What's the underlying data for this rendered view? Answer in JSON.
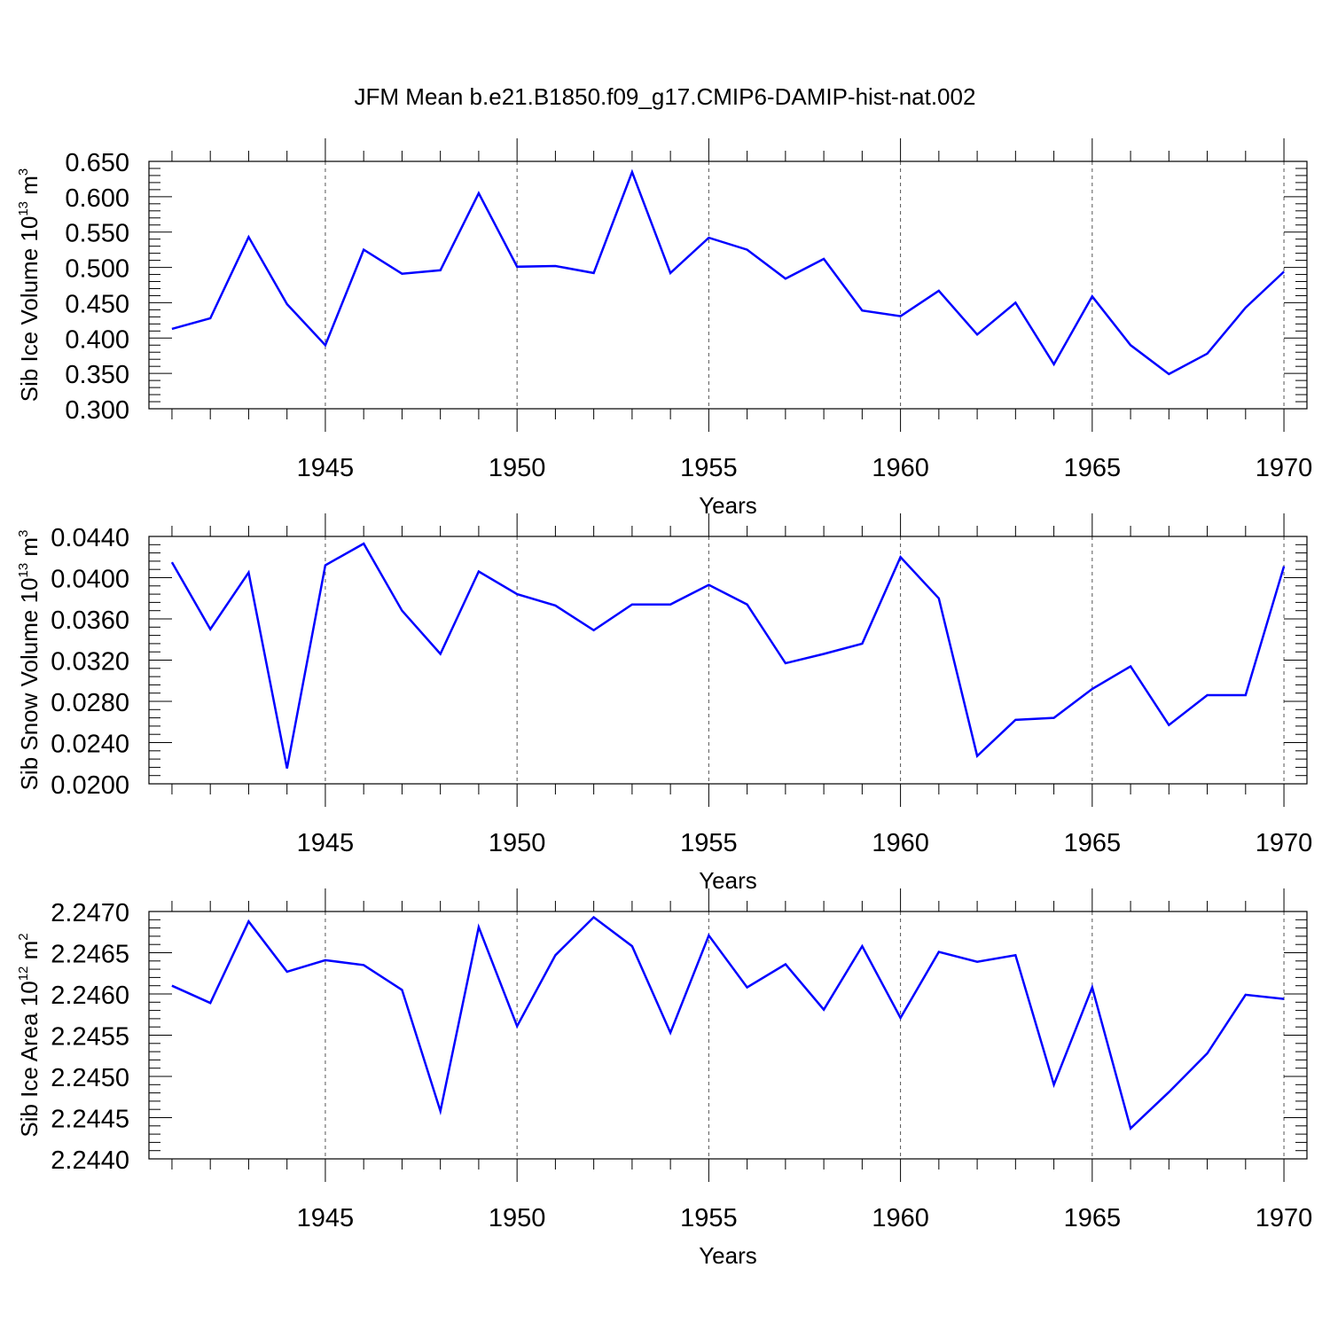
{
  "title": "JFM Mean b.e21.B1850.f09_g17.CMIP6-DAMIP-hist-nat.002",
  "line_color": "#0000ff",
  "chart_data": [
    {
      "type": "line",
      "ylabel_text": "Sib Ice Volume 10",
      "ylabel_exp": "13",
      "ylabel_unit": "m",
      "ylabel_unit_exp": "3",
      "xlabel": "Years",
      "xlim": [
        1941,
        1970
      ],
      "ylim": [
        0.3,
        0.65
      ],
      "xticks": [
        "1945",
        "1950",
        "1955",
        "1960",
        "1965",
        "1970"
      ],
      "yticks": [
        "0.300",
        "0.350",
        "0.400",
        "0.450",
        "0.500",
        "0.550",
        "0.600",
        "0.650"
      ],
      "grid": "dashed vertical at major x ticks",
      "x": [
        1941,
        1942,
        1943,
        1944,
        1945,
        1946,
        1947,
        1948,
        1949,
        1950,
        1951,
        1952,
        1953,
        1954,
        1955,
        1956,
        1957,
        1958,
        1959,
        1960,
        1961,
        1962,
        1963,
        1964,
        1965,
        1966,
        1967,
        1968,
        1969,
        1970
      ],
      "values": [
        0.413,
        0.428,
        0.543,
        0.448,
        0.39,
        0.525,
        0.491,
        0.496,
        0.605,
        0.501,
        0.502,
        0.492,
        0.635,
        0.492,
        0.542,
        0.525,
        0.484,
        0.512,
        0.439,
        0.431,
        0.467,
        0.405,
        0.45,
        0.363,
        0.459,
        0.39,
        0.349,
        0.378,
        0.443,
        0.494
      ]
    },
    {
      "type": "line",
      "ylabel_text": "Sib Snow Volume 10",
      "ylabel_exp": "13",
      "ylabel_unit": "m",
      "ylabel_unit_exp": "3",
      "xlabel": "Years",
      "xlim": [
        1941,
        1970
      ],
      "ylim": [
        0.02,
        0.044
      ],
      "xticks": [
        "1945",
        "1950",
        "1955",
        "1960",
        "1965",
        "1970"
      ],
      "yticks": [
        "0.0200",
        "0.0240",
        "0.0280",
        "0.0320",
        "0.0360",
        "0.0400",
        "0.0440"
      ],
      "grid": "dashed vertical at major x ticks",
      "x": [
        1941,
        1942,
        1943,
        1944,
        1945,
        1946,
        1947,
        1948,
        1949,
        1950,
        1951,
        1952,
        1953,
        1954,
        1955,
        1956,
        1957,
        1958,
        1959,
        1960,
        1961,
        1962,
        1963,
        1964,
        1965,
        1966,
        1967,
        1968,
        1969,
        1970
      ],
      "values": [
        0.0415,
        0.035,
        0.0405,
        0.0215,
        0.0412,
        0.0433,
        0.0368,
        0.0326,
        0.0406,
        0.0384,
        0.0373,
        0.0349,
        0.0374,
        0.0374,
        0.0393,
        0.0374,
        0.0317,
        0.0326,
        0.0336,
        0.042,
        0.038,
        0.0227,
        0.0262,
        0.0264,
        0.0292,
        0.0314,
        0.0257,
        0.0286,
        0.0286,
        0.0411
      ]
    },
    {
      "type": "line",
      "ylabel_text": "Sib Ice Area 10",
      "ylabel_exp": "12",
      "ylabel_unit": "m",
      "ylabel_unit_exp": "2",
      "xlabel": "Years",
      "xlim": [
        1941,
        1970
      ],
      "ylim": [
        2.244,
        2.247
      ],
      "xticks": [
        "1945",
        "1950",
        "1955",
        "1960",
        "1965",
        "1970"
      ],
      "yticks": [
        "2.2440",
        "2.2445",
        "2.2450",
        "2.2455",
        "2.2460",
        "2.2465",
        "2.2470"
      ],
      "grid": "dashed vertical at major x ticks",
      "x": [
        1941,
        1942,
        1943,
        1944,
        1945,
        1946,
        1947,
        1948,
        1949,
        1950,
        1951,
        1952,
        1953,
        1954,
        1955,
        1956,
        1957,
        1958,
        1959,
        1960,
        1961,
        1962,
        1963,
        1964,
        1965,
        1966,
        1967,
        1968,
        1969,
        1970
      ],
      "values": [
        2.2461,
        2.24589,
        2.24688,
        2.24627,
        2.24641,
        2.24635,
        2.24605,
        2.24458,
        2.24681,
        2.24561,
        2.24647,
        2.24693,
        2.24658,
        2.24553,
        2.24671,
        2.24608,
        2.24636,
        2.24581,
        2.24658,
        2.24571,
        2.24651,
        2.24639,
        2.24647,
        2.2449,
        2.24608,
        2.24437,
        2.24481,
        2.24528,
        2.24599,
        2.24594
      ]
    }
  ]
}
